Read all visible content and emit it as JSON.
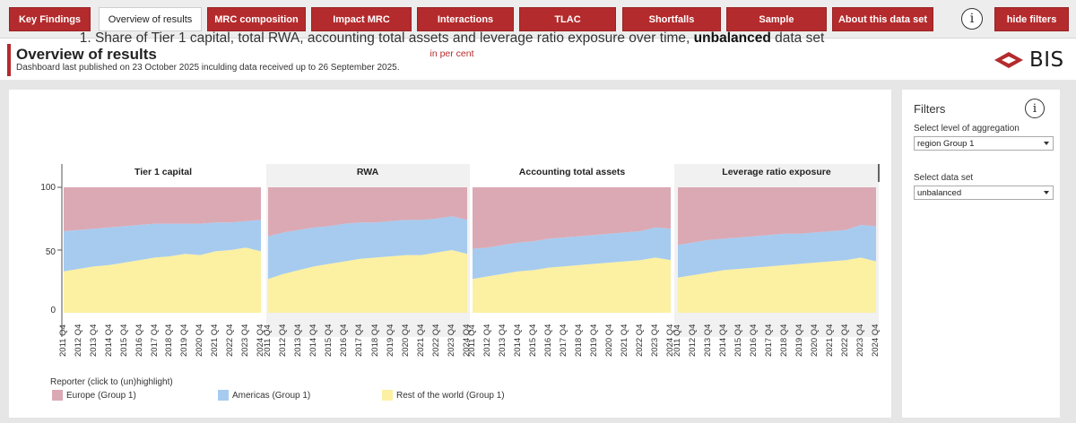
{
  "tabs": [
    {
      "label": "Key Findings",
      "active": false
    },
    {
      "label": "Overview of results",
      "active": true
    },
    {
      "label": "MRC composition",
      "active": false
    },
    {
      "label": "Impact MRC",
      "active": false
    },
    {
      "label": "Interactions",
      "active": false
    },
    {
      "label": "TLAC",
      "active": false
    },
    {
      "label": "Shortfalls",
      "active": false
    },
    {
      "label": "Sample",
      "active": false
    },
    {
      "label": "About this data set",
      "active": false
    },
    {
      "label": "hide filters",
      "active": false
    }
  ],
  "info_icon": "i",
  "header": {
    "title": "Overview of results",
    "subtitle": "Dashboard last published on 23 October 2025 inculding data received up to 26 September 2025.",
    "logo_text": "BIS"
  },
  "chart": {
    "title_prefix": "1. Share of Tier 1 capital, total RWA, accounting total assets and leverage ratio exposure over time,",
    "title_bold": "unbalanced",
    "title_suffix": "data set",
    "unit": "in per cent"
  },
  "legend": {
    "title": "Reporter (click to (un)highlight)",
    "items": [
      {
        "label": "Europe (Group 1)",
        "color": "#dba9b4"
      },
      {
        "label": "Americas (Group 1)",
        "color": "#a6cbef"
      },
      {
        "label": "Rest of the world (Group 1)",
        "color": "#fcf0a3"
      }
    ]
  },
  "filters": {
    "title": "Filters",
    "aggregation_label": "Select level of aggregation",
    "aggregation_value": "region Group 1",
    "dataset_label": "Select data set",
    "dataset_value": "unbalanced"
  },
  "chart_data": {
    "type": "area",
    "stacked": true,
    "ylim": [
      0,
      100
    ],
    "yticks": [
      "100",
      "50",
      "0"
    ],
    "x": [
      "2011 Q4",
      "2012 Q4",
      "2013 Q4",
      "2014 Q4",
      "2015 Q4",
      "2016 Q4",
      "2017 Q4",
      "2018 Q4",
      "2019 Q4",
      "2020 Q4",
      "2021 Q4",
      "2022 Q4",
      "2023 Q4",
      "2024 Q4"
    ],
    "panels": [
      {
        "title": "Tier 1 capital",
        "series": [
          {
            "name": "Rest of the world (Group 1)",
            "values": [
              33,
              35,
              37,
              38,
              40,
              42,
              44,
              45,
              47,
              46,
              49,
              50,
              52,
              49
            ]
          },
          {
            "name": "Americas (Group 1)",
            "values": [
              32,
              31,
              30,
              30,
              29,
              28,
              27,
              26,
              24,
              25,
              23,
              22,
              21,
              25
            ]
          },
          {
            "name": "Europe (Group 1)",
            "values": [
              35,
              34,
              33,
              32,
              31,
              30,
              29,
              29,
              29,
              29,
              28,
              28,
              27,
              26
            ]
          }
        ]
      },
      {
        "title": "RWA",
        "series": [
          {
            "name": "Rest of the world (Group 1)",
            "values": [
              27,
              31,
              34,
              37,
              39,
              41,
              43,
              44,
              45,
              46,
              46,
              48,
              50,
              47
            ]
          },
          {
            "name": "Americas (Group 1)",
            "values": [
              34,
              33,
              32,
              31,
              30,
              30,
              29,
              28,
              28,
              28,
              28,
              27,
              27,
              27
            ]
          },
          {
            "name": "Europe (Group 1)",
            "values": [
              39,
              36,
              34,
              32,
              31,
              29,
              28,
              28,
              27,
              26,
              26,
              25,
              23,
              26
            ]
          }
        ]
      },
      {
        "title": "Accounting total assets",
        "series": [
          {
            "name": "Rest of the world (Group 1)",
            "values": [
              27,
              29,
              31,
              33,
              34,
              36,
              37,
              38,
              39,
              40,
              41,
              42,
              44,
              42
            ]
          },
          {
            "name": "Americas (Group 1)",
            "values": [
              24,
              23,
              23,
              23,
              23,
              23,
              23,
              23,
              23,
              23,
              23,
              23,
              24,
              25
            ]
          },
          {
            "name": "Europe (Group 1)",
            "values": [
              49,
              48,
              46,
              44,
              43,
              41,
              40,
              39,
              38,
              37,
              36,
              35,
              32,
              33
            ]
          }
        ]
      },
      {
        "title": "Leverage ratio exposure",
        "series": [
          {
            "name": "Rest of the world (Group 1)",
            "values": [
              28,
              30,
              32,
              34,
              35,
              36,
              37,
              38,
              39,
              40,
              41,
              42,
              44,
              41
            ]
          },
          {
            "name": "Americas (Group 1)",
            "values": [
              26,
              26,
              26,
              25,
              25,
              25,
              25,
              25,
              24,
              24,
              24,
              24,
              26,
              28
            ]
          },
          {
            "name": "Europe (Group 1)",
            "values": [
              46,
              44,
              42,
              41,
              40,
              39,
              38,
              37,
              37,
              36,
              35,
              34,
              30,
              31
            ]
          }
        ]
      }
    ]
  }
}
